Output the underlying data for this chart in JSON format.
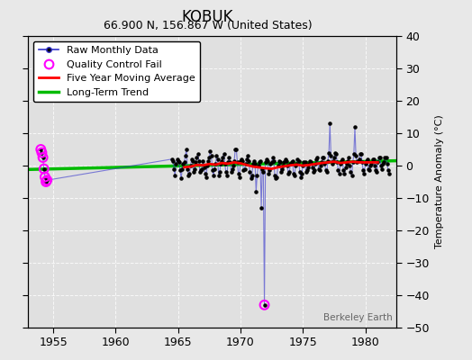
{
  "title": "KOBUK",
  "subtitle": "66.900 N, 156.867 W (United States)",
  "ylabel": "Temperature Anomaly (°C)",
  "watermark": "Berkeley Earth",
  "xlim": [
    1953.0,
    1982.5
  ],
  "ylim": [
    -50,
    40
  ],
  "yticks": [
    -50,
    -40,
    -30,
    -20,
    -10,
    0,
    10,
    20,
    30,
    40
  ],
  "xticks": [
    1955,
    1960,
    1965,
    1970,
    1975,
    1980
  ],
  "bg_color": "#e8e8e8",
  "plot_bg_color": "#e0e0e0",
  "grid_color": "#cccccc",
  "raw_color": "#3333cc",
  "raw_line_alpha": 0.6,
  "raw_marker_color": "#000000",
  "qc_fail_color": "#ff00ff",
  "ma_color": "#ff0000",
  "trend_color": "#00bb00",
  "legend_fontsize": 8,
  "title_fontsize": 12,
  "subtitle_fontsize": 9,
  "raw_x": [
    1954.0,
    1954.083,
    1954.167,
    1954.25,
    1954.333,
    1954.417,
    1954.5,
    1964.5,
    1964.583,
    1964.667,
    1964.75,
    1964.833,
    1964.917,
    1965.0,
    1965.083,
    1965.167,
    1965.25,
    1965.333,
    1965.417,
    1965.5,
    1965.583,
    1965.667,
    1965.75,
    1965.833,
    1965.917,
    1966.0,
    1966.083,
    1966.167,
    1966.25,
    1966.333,
    1966.417,
    1966.5,
    1966.583,
    1966.667,
    1966.75,
    1966.833,
    1966.917,
    1967.0,
    1967.083,
    1967.167,
    1967.25,
    1967.333,
    1967.417,
    1967.5,
    1967.583,
    1967.667,
    1967.75,
    1967.833,
    1967.917,
    1968.0,
    1968.083,
    1968.167,
    1968.25,
    1968.333,
    1968.417,
    1968.5,
    1968.583,
    1968.667,
    1968.75,
    1968.833,
    1968.917,
    1969.0,
    1969.083,
    1969.167,
    1969.25,
    1969.333,
    1969.417,
    1969.5,
    1969.583,
    1969.667,
    1969.75,
    1969.833,
    1969.917,
    1970.0,
    1970.083,
    1970.167,
    1970.25,
    1970.333,
    1970.417,
    1970.5,
    1970.583,
    1970.667,
    1970.75,
    1970.833,
    1970.917,
    1971.0,
    1971.083,
    1971.167,
    1971.25,
    1971.333,
    1971.417,
    1971.5,
    1971.583,
    1971.667,
    1971.75,
    1971.833,
    1971.917,
    1972.0,
    1972.083,
    1972.167,
    1972.25,
    1972.333,
    1972.417,
    1972.5,
    1972.583,
    1972.667,
    1972.75,
    1972.833,
    1972.917,
    1973.0,
    1973.083,
    1973.167,
    1973.25,
    1973.333,
    1973.417,
    1973.5,
    1973.583,
    1973.667,
    1973.75,
    1973.833,
    1973.917,
    1974.0,
    1974.083,
    1974.167,
    1974.25,
    1974.333,
    1974.417,
    1974.5,
    1974.583,
    1974.667,
    1974.75,
    1974.833,
    1974.917,
    1975.0,
    1975.083,
    1975.167,
    1975.25,
    1975.333,
    1975.417,
    1975.5,
    1975.583,
    1975.667,
    1975.75,
    1975.833,
    1975.917,
    1976.0,
    1976.083,
    1976.167,
    1976.25,
    1976.333,
    1976.417,
    1976.5,
    1976.583,
    1976.667,
    1976.75,
    1976.833,
    1976.917,
    1977.0,
    1977.083,
    1977.167,
    1977.25,
    1977.333,
    1977.417,
    1977.5,
    1977.583,
    1977.667,
    1977.75,
    1977.833,
    1977.917,
    1978.0,
    1978.083,
    1978.167,
    1978.25,
    1978.333,
    1978.417,
    1978.5,
    1978.583,
    1978.667,
    1978.75,
    1978.833,
    1978.917,
    1979.0,
    1979.083,
    1979.167,
    1979.25,
    1979.333,
    1979.417,
    1979.5,
    1979.583,
    1979.667,
    1979.75,
    1979.833,
    1979.917,
    1980.0,
    1980.083,
    1980.167,
    1980.25,
    1980.333,
    1980.417,
    1980.5,
    1980.583,
    1980.667,
    1980.75,
    1980.833,
    1980.917,
    1981.0,
    1981.083,
    1981.167,
    1981.25,
    1981.333,
    1981.417,
    1981.5,
    1981.583,
    1981.667,
    1981.75,
    1981.833,
    1981.917
  ],
  "raw_y": [
    5.0,
    4.0,
    2.5,
    -1.0,
    -3.5,
    -5.0,
    -4.5,
    2.0,
    1.5,
    -1.0,
    -3.0,
    0.5,
    2.0,
    1.5,
    1.0,
    -1.5,
    -4.0,
    -1.0,
    0.5,
    1.0,
    3.0,
    5.0,
    -1.0,
    -3.0,
    -2.5,
    0.0,
    2.0,
    1.5,
    -2.0,
    -1.0,
    1.0,
    2.5,
    3.5,
    1.5,
    -2.0,
    -1.5,
    -1.0,
    1.5,
    -0.5,
    -2.5,
    -3.5,
    0.0,
    1.5,
    2.5,
    4.5,
    3.0,
    -1.5,
    -3.0,
    -1.0,
    0.5,
    3.0,
    2.0,
    -3.0,
    -2.0,
    0.5,
    1.5,
    2.5,
    3.5,
    0.5,
    -2.0,
    -3.0,
    1.0,
    2.5,
    1.0,
    -2.0,
    -1.0,
    0.0,
    1.5,
    5.0,
    5.0,
    1.0,
    -2.5,
    -3.5,
    1.5,
    2.0,
    1.5,
    -1.5,
    -1.0,
    0.5,
    2.0,
    3.0,
    1.5,
    -2.0,
    -4.0,
    -3.0,
    0.5,
    1.5,
    0.5,
    -8.0,
    -3.0,
    0.0,
    1.0,
    1.5,
    -13.0,
    -1.0,
    -2.0,
    -43.0,
    1.0,
    2.0,
    1.5,
    -2.5,
    -1.5,
    0.5,
    1.0,
    2.5,
    1.5,
    -3.0,
    -4.0,
    -3.5,
    0.0,
    1.5,
    1.0,
    -2.0,
    -1.0,
    0.0,
    1.0,
    2.0,
    1.5,
    0.0,
    -2.5,
    -2.0,
    0.5,
    1.0,
    1.5,
    -2.5,
    -3.0,
    0.0,
    0.5,
    2.0,
    1.5,
    -2.0,
    -3.5,
    -2.5,
    0.0,
    1.0,
    1.0,
    -2.0,
    -1.5,
    -0.5,
    0.5,
    1.5,
    1.0,
    -0.5,
    -2.0,
    -1.5,
    0.5,
    2.0,
    2.5,
    -1.0,
    -1.5,
    0.0,
    1.0,
    2.5,
    2.5,
    0.5,
    -1.5,
    -2.0,
    1.5,
    4.0,
    13.0,
    3.0,
    0.5,
    1.5,
    2.5,
    4.0,
    3.5,
    1.0,
    -1.5,
    -2.5,
    0.5,
    1.5,
    2.0,
    -1.5,
    -2.5,
    -0.5,
    0.5,
    1.5,
    2.5,
    0.0,
    -2.0,
    -3.0,
    1.0,
    3.5,
    12.0,
    3.0,
    1.0,
    1.5,
    2.0,
    3.5,
    3.5,
    1.0,
    -1.5,
    -2.5,
    0.5,
    1.5,
    2.0,
    -1.0,
    -1.5,
    0.0,
    0.5,
    2.0,
    2.0,
    0.0,
    -1.5,
    -2.0,
    1.0,
    2.5,
    2.5,
    0.0,
    -1.0,
    0.5,
    1.0,
    2.5,
    2.5,
    0.5,
    -1.5,
    -2.5
  ],
  "qc_fail_x": [
    1954.0,
    1954.083,
    1954.167,
    1954.25,
    1954.333,
    1954.417,
    1954.5,
    1971.917
  ],
  "qc_fail_y": [
    5.0,
    4.0,
    2.5,
    -1.0,
    -3.5,
    -5.0,
    -4.5,
    -43.0
  ],
  "ma_x": [
    1965.5,
    1966.0,
    1966.5,
    1967.0,
    1967.5,
    1968.0,
    1968.5,
    1969.0,
    1969.5,
    1970.0,
    1970.5,
    1971.0,
    1972.0,
    1972.5,
    1973.0,
    1973.5,
    1974.0,
    1974.5,
    1975.0,
    1975.5,
    1976.0,
    1976.5,
    1977.0,
    1977.5,
    1978.0,
    1978.5,
    1979.0,
    1979.5,
    1980.0,
    1980.5,
    1981.0
  ],
  "ma_y": [
    -0.5,
    -0.3,
    0.2,
    0.1,
    0.5,
    0.3,
    0.8,
    0.6,
    1.0,
    0.7,
    0.2,
    -0.3,
    -0.8,
    -1.0,
    -0.5,
    -0.2,
    0.1,
    0.3,
    0.0,
    0.2,
    0.5,
    0.8,
    1.0,
    1.2,
    0.8,
    1.0,
    1.2,
    1.0,
    1.0,
    1.0,
    1.0
  ],
  "trend_x": [
    1953.0,
    1982.5
  ],
  "trend_y": [
    -1.2,
    1.5
  ]
}
